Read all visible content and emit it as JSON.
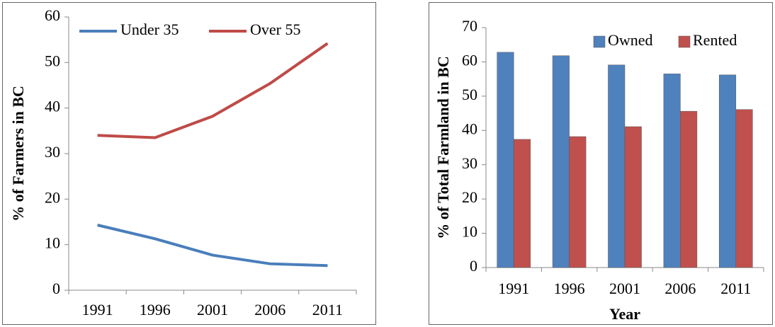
{
  "chart_data": [
    {
      "type": "line",
      "y_label": "% of Farmers in BC",
      "categories": [
        "1991",
        "1996",
        "2001",
        "2006",
        "2011"
      ],
      "series": [
        {
          "name": "Under 35",
          "color": "#4a7ebb",
          "values": [
            14.3,
            11.3,
            7.7,
            5.8,
            5.4
          ]
        },
        {
          "name": "Over 55",
          "color": "#be4b48",
          "values": [
            34,
            33.5,
            38.2,
            45.4,
            54.2
          ]
        }
      ],
      "ylim": [
        0,
        60
      ],
      "yticks": [
        0,
        10,
        20,
        30,
        40,
        50,
        60
      ],
      "legend": "top-left"
    },
    {
      "type": "bar",
      "y_label": "% of Total Farmland in BC",
      "x_label": "Year",
      "categories": [
        "1991",
        "1996",
        "2001",
        "2006",
        "2011"
      ],
      "series": [
        {
          "name": "Owned",
          "color": "#4f81bd",
          "values": [
            62.8,
            61.8,
            59.1,
            56.5,
            56.2
          ]
        },
        {
          "name": "Rented",
          "color": "#c0504d",
          "values": [
            37.4,
            38.2,
            41.1,
            45.6,
            46.1
          ]
        }
      ],
      "ylim": [
        0,
        70
      ],
      "yticks": [
        0,
        10,
        20,
        30,
        40,
        50,
        60,
        70
      ],
      "legend": "top-right"
    }
  ]
}
